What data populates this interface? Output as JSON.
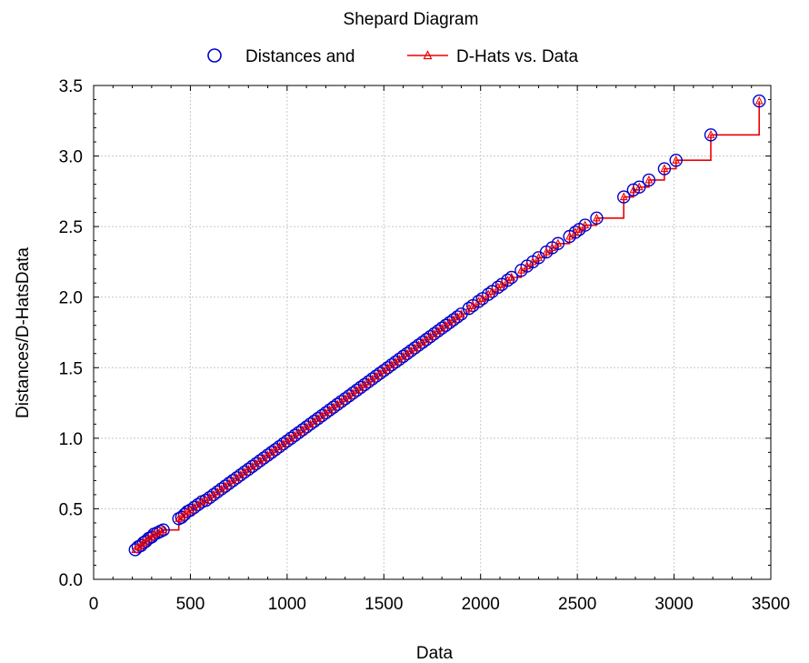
{
  "chart_data": {
    "type": "scatter",
    "title": "Shepard Diagram",
    "xlabel": "Data",
    "ylabel": "Distances/D-HatsData",
    "xlim": [
      0,
      3500
    ],
    "ylim": [
      0,
      3.5
    ],
    "x_ticks": [
      "0",
      "500",
      "1000",
      "1500",
      "2000",
      "2500",
      "3000",
      "3500"
    ],
    "y_ticks": [
      "0.0",
      "0.5",
      "1.0",
      "1.5",
      "2.0",
      "2.5",
      "3.0",
      "3.5"
    ],
    "grid": true,
    "legend_position": "top-center",
    "series": [
      {
        "name": "Distances and",
        "marker": "circle",
        "color": "#0000cc",
        "x": [
          215,
          230,
          245,
          258,
          270,
          285,
          300,
          312,
          330,
          345,
          360,
          440,
          455,
          470,
          485,
          500,
          520,
          540,
          560,
          580,
          600,
          620,
          640,
          660,
          680,
          700,
          720,
          740,
          760,
          780,
          800,
          820,
          840,
          860,
          880,
          900,
          920,
          940,
          960,
          980,
          1000,
          1020,
          1040,
          1060,
          1080,
          1100,
          1120,
          1140,
          1160,
          1180,
          1200,
          1220,
          1240,
          1260,
          1280,
          1300,
          1320,
          1340,
          1360,
          1380,
          1400,
          1420,
          1440,
          1460,
          1480,
          1500,
          1520,
          1540,
          1560,
          1580,
          1600,
          1620,
          1640,
          1660,
          1680,
          1700,
          1720,
          1740,
          1760,
          1780,
          1800,
          1820,
          1840,
          1860,
          1880,
          1900,
          1940,
          1960,
          1990,
          2010,
          2040,
          2060,
          2090,
          2110,
          2140,
          2160,
          2210,
          2240,
          2270,
          2300,
          2340,
          2370,
          2400,
          2460,
          2490,
          2510,
          2540,
          2600,
          2740,
          2790,
          2820,
          2870,
          2950,
          3010,
          3190,
          3440
        ],
        "y": [
          0.21,
          0.23,
          0.24,
          0.26,
          0.27,
          0.29,
          0.3,
          0.32,
          0.33,
          0.34,
          0.35,
          0.43,
          0.44,
          0.46,
          0.48,
          0.49,
          0.51,
          0.53,
          0.55,
          0.56,
          0.58,
          0.6,
          0.62,
          0.64,
          0.66,
          0.68,
          0.7,
          0.72,
          0.74,
          0.76,
          0.78,
          0.8,
          0.82,
          0.84,
          0.86,
          0.88,
          0.9,
          0.92,
          0.94,
          0.96,
          0.98,
          1.0,
          1.02,
          1.04,
          1.06,
          1.08,
          1.1,
          1.12,
          1.14,
          1.16,
          1.18,
          1.2,
          1.22,
          1.24,
          1.26,
          1.28,
          1.3,
          1.32,
          1.34,
          1.36,
          1.38,
          1.4,
          1.42,
          1.44,
          1.46,
          1.48,
          1.5,
          1.52,
          1.54,
          1.56,
          1.58,
          1.6,
          1.62,
          1.64,
          1.66,
          1.68,
          1.7,
          1.72,
          1.74,
          1.76,
          1.78,
          1.8,
          1.82,
          1.84,
          1.86,
          1.88,
          1.92,
          1.94,
          1.97,
          1.99,
          2.02,
          2.04,
          2.07,
          2.09,
          2.12,
          2.14,
          2.19,
          2.22,
          2.25,
          2.28,
          2.32,
          2.35,
          2.38,
          2.43,
          2.46,
          2.48,
          2.51,
          2.56,
          2.71,
          2.76,
          2.78,
          2.83,
          2.91,
          2.97,
          3.15,
          3.39
        ]
      },
      {
        "name": "D-Hats vs. Data",
        "marker": "triangle",
        "line": "step",
        "color": "#ee0000",
        "x": [
          215,
          230,
          245,
          258,
          270,
          285,
          300,
          312,
          330,
          345,
          360,
          440,
          455,
          470,
          485,
          500,
          520,
          540,
          560,
          580,
          600,
          620,
          640,
          660,
          680,
          700,
          720,
          740,
          760,
          780,
          800,
          820,
          840,
          860,
          880,
          900,
          920,
          940,
          960,
          980,
          1000,
          1020,
          1040,
          1060,
          1080,
          1100,
          1120,
          1140,
          1160,
          1180,
          1200,
          1220,
          1240,
          1260,
          1280,
          1300,
          1320,
          1340,
          1360,
          1380,
          1400,
          1420,
          1440,
          1460,
          1480,
          1500,
          1520,
          1540,
          1560,
          1580,
          1600,
          1620,
          1640,
          1660,
          1680,
          1700,
          1720,
          1740,
          1760,
          1780,
          1800,
          1820,
          1840,
          1860,
          1880,
          1900,
          1940,
          1960,
          1990,
          2010,
          2040,
          2060,
          2090,
          2110,
          2140,
          2160,
          2210,
          2240,
          2270,
          2300,
          2340,
          2370,
          2400,
          2460,
          2490,
          2510,
          2540,
          2600,
          2740,
          2790,
          2820,
          2870,
          2950,
          3010,
          3190,
          3440
        ],
        "y": [
          0.21,
          0.23,
          0.24,
          0.26,
          0.27,
          0.29,
          0.3,
          0.32,
          0.33,
          0.34,
          0.35,
          0.43,
          0.44,
          0.46,
          0.48,
          0.49,
          0.51,
          0.53,
          0.55,
          0.56,
          0.58,
          0.6,
          0.62,
          0.64,
          0.66,
          0.68,
          0.7,
          0.72,
          0.74,
          0.76,
          0.78,
          0.8,
          0.82,
          0.84,
          0.86,
          0.88,
          0.9,
          0.92,
          0.94,
          0.96,
          0.98,
          1.0,
          1.02,
          1.04,
          1.06,
          1.08,
          1.1,
          1.12,
          1.14,
          1.16,
          1.18,
          1.2,
          1.22,
          1.24,
          1.26,
          1.28,
          1.3,
          1.32,
          1.34,
          1.36,
          1.38,
          1.4,
          1.42,
          1.44,
          1.46,
          1.48,
          1.5,
          1.52,
          1.54,
          1.56,
          1.58,
          1.6,
          1.62,
          1.64,
          1.66,
          1.68,
          1.7,
          1.72,
          1.74,
          1.76,
          1.78,
          1.8,
          1.82,
          1.84,
          1.86,
          1.88,
          1.92,
          1.94,
          1.97,
          1.99,
          2.02,
          2.04,
          2.07,
          2.09,
          2.12,
          2.14,
          2.19,
          2.22,
          2.25,
          2.28,
          2.32,
          2.35,
          2.38,
          2.43,
          2.46,
          2.48,
          2.51,
          2.56,
          2.71,
          2.76,
          2.78,
          2.83,
          2.91,
          2.97,
          3.15,
          3.39
        ]
      }
    ]
  }
}
